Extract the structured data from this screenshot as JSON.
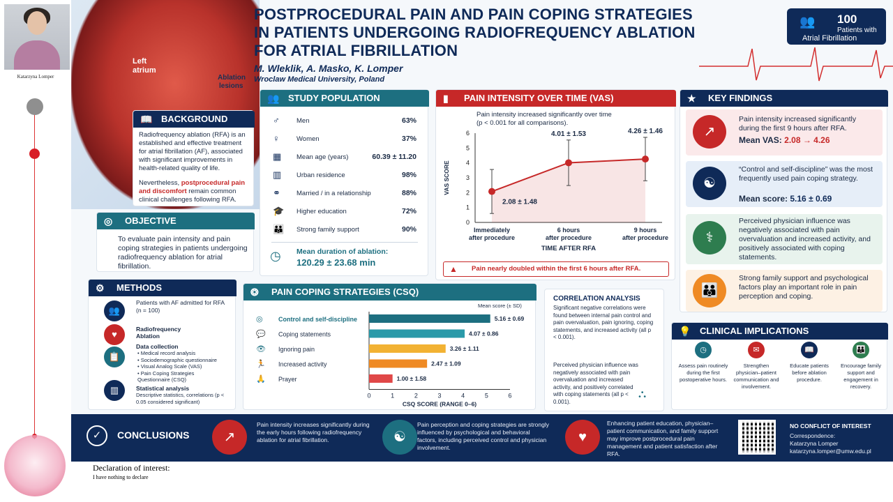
{
  "presenter": {
    "name": "Katarzyna Lomper"
  },
  "poster": {
    "title_lines": [
      "POSTPROCEDURAL PAIN AND PAIN COPING STRATEGIES",
      "IN PATIENTS UNDERGOING RADIOFREQUENCY ABLATION",
      "FOR ATRIAL FIBRILLATION"
    ],
    "authors": "M. Wleklik, A. Masko, K. Lomper",
    "affiliation": "Wroclaw Medical University, Poland",
    "badge": {
      "number": "100",
      "line1": "Patients with",
      "line2": "Atrial Fibrillation"
    },
    "heart_labels": {
      "left_atrium_1": "Left",
      "left_atrium_2": "atrium",
      "ablation_1": "Ablation",
      "ablation_2": "lesions"
    },
    "background": {
      "title": "BACKGROUND",
      "p1": "Radiofrequency ablation (RFA) is an established and effective treatment for atrial fibrillation (AF), associated with significant improvements in health-related quality of life.",
      "p2_a": "Nevertheless, ",
      "p2_hl": "postprocedural pain and discomfort",
      "p2_b": " remain common clinical challenges following RFA."
    },
    "objective": {
      "title": "OBJECTIVE",
      "text": "To evaluate pain intensity and pain coping strategies in patients undergoing radiofrequency ablation for atrial fibrillation."
    },
    "methods": {
      "title": "METHODS",
      "step1": "Patients with AF admitted for RFA (n = 100)",
      "step2a": "Radiofrequency",
      "step2b": "Ablation",
      "step3_title": "Data collection",
      "step3_items": [
        "• Medical record analysis",
        "• Sociodemographic questionnaire",
        "• Visual Analog Scale (VAS)",
        "• Pain Coping Strategies",
        "  Questionnaire (CSQ)"
      ],
      "step4_title": "Statistical analysis",
      "step4_text": "Descriptive statistics, correlations (p < 0.05 considered significant)"
    },
    "population": {
      "title": "STUDY POPULATION",
      "rows": [
        {
          "label": "Men",
          "value": "63%",
          "icon": "male-icon"
        },
        {
          "label": "Women",
          "value": "37%",
          "icon": "female-icon"
        },
        {
          "label": "Mean age (years)",
          "value": "60.39 ± 11.20",
          "icon": "calendar-icon"
        },
        {
          "label": "Urban residence",
          "value": "98%",
          "icon": "building-icon"
        },
        {
          "label": "Married / in a relationship",
          "value": "88%",
          "icon": "rings-icon"
        },
        {
          "label": "Higher education",
          "value": "72%",
          "icon": "graduation-icon"
        },
        {
          "label": "Strong family support",
          "value": "90%",
          "icon": "family-icon"
        }
      ],
      "duration_label": "Mean duration of ablation:",
      "duration_value": "120.29 ± 23.68 min"
    },
    "vas": {
      "title": "PAIN INTENSITY OVER TIME (VAS)",
      "subtitle1": "Pain intensity increased significantly over time",
      "subtitle2": "(p < 0.001 for all comparisons).",
      "note": "Pain nearly doubled within the first 6 hours after RFA."
    },
    "csq": {
      "title": "PAIN COPING STRATEGIES (CSQ)",
      "legend": "Mean score (± SD)"
    },
    "correlation": {
      "title": "CORRELATION ANALYSIS",
      "p1": "Significant negative correlations were found between internal pain control and pain overvaluation, pain ignoring, coping statements, and increased activity (all p < 0.001).",
      "p2": "Perceived physician influence was negatively associated with pain overvaluation and increased activity, and positively correlated with coping statements (all p < 0.001)."
    },
    "findings": {
      "title": "KEY FINDINGS",
      "f1": "Pain intensity increased significantly during the first 9 hours after RFA.",
      "f1_label": "Mean VAS:",
      "f1_value": "2.08 → 4.26",
      "f2": "“Control and self-discipline” was the most frequently used pain coping strategy.",
      "f2_label": "Mean score:",
      "f2_value": "5.16 ± 0.69",
      "f3": "Perceived physician influence was negatively associated with pain overvaluation and increased activity, and positively associated with coping statements.",
      "f4": "Strong family support and psychological factors play an important role in pain perception and coping."
    },
    "implications": {
      "title": "CLINICAL IMPLICATIONS",
      "items": [
        "Assess pain routinely during the first postoperative hours.",
        "Strengthen physician–patient communication and involvement.",
        "Educate patients before ablation procedure.",
        "Encourage family support and engagement in recovery."
      ]
    },
    "conclusions": {
      "title": "CONCLUSIONS",
      "c1": "Pain intensity increases significantly during the early hours following radiofrequency ablation for atrial fibrillation.",
      "c2": "Pain perception and coping strategies are strongly influenced by psychological and behavioral factors, including perceived control and physician involvement.",
      "c3": "Enhancing patient education, physician–patient communication, and family support may improve postprocedural pain management and patient satisfaction after RFA.",
      "coi": "NO CONFLICT OF INTEREST",
      "corr": "Correspondence:",
      "corr_name": "Katarzyna Lomper",
      "corr_email": "katarzyna.lomper@umw.edu.pl"
    }
  },
  "declaration": {
    "title": "Declaration of interest:",
    "text": "I have nothing to declare"
  },
  "chart_data": [
    {
      "type": "line",
      "x": [
        "Immediately after procedure",
        "6 hours after procedure",
        "9 hours after procedure"
      ],
      "values": [
        2.08,
        4.01,
        4.26
      ],
      "sd": [
        1.48,
        1.53,
        1.46
      ],
      "data_labels": [
        "2.08 ± 1.48",
        "4.01 ± 1.53",
        "4.26 ± 1.46"
      ],
      "xlabel": "TIME AFTER RFA",
      "ylabel": "VAS SCORE",
      "ylim": [
        0,
        6
      ],
      "yticks": [
        0,
        1,
        2,
        3,
        4,
        5,
        6
      ],
      "color": "#c62828"
    },
    {
      "type": "bar",
      "categories": [
        "Control and self-discipline",
        "Coping statements",
        "Ignoring pain",
        "Increased activity",
        "Prayer"
      ],
      "values": [
        5.16,
        4.07,
        3.26,
        2.47,
        1.0
      ],
      "sd": [
        0.69,
        0.86,
        1.11,
        1.09,
        1.58
      ],
      "data_labels": [
        "5.16 ± 0.69",
        "4.07 ± 0.86",
        "3.26 ± 1.11",
        "2.47 ± 1.09",
        "1.00 ± 1.58"
      ],
      "colors": [
        "#1d6f80",
        "#2a9aa9",
        "#f2b233",
        "#ef8a24",
        "#e04848"
      ],
      "xlabel": "CSQ SCORE (RANGE 0–6)",
      "xlim": [
        0,
        6
      ],
      "xticks": [
        0,
        1,
        2,
        3,
        4,
        5,
        6
      ]
    }
  ]
}
